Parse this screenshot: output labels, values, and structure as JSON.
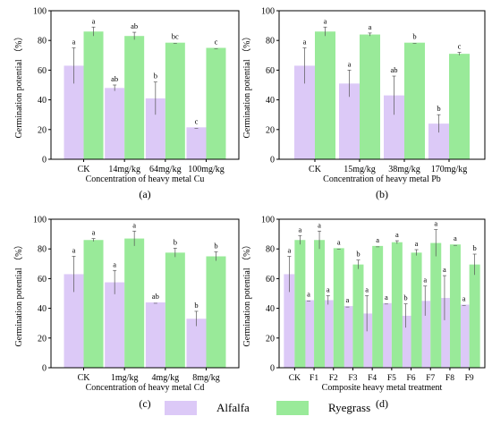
{
  "colors": {
    "alfalfa": "#dcc9f7",
    "ryegrass": "#99ea99",
    "error_bar": "#555555"
  },
  "legend": {
    "alfalfa": "Alfalfa",
    "ryegrass": "Ryegrass"
  },
  "chart_data": [
    {
      "type": "bar",
      "panel_label": "(a)",
      "xlabel": "Concentration of heavy metal Cu",
      "ylabel": "Germination potential （%）",
      "ylim": [
        0,
        100
      ],
      "yticks": [
        0,
        20,
        40,
        60,
        80,
        100
      ],
      "categories": [
        "CK",
        "14mg/kg",
        "64mg/kg",
        "100mg/kg"
      ],
      "series": [
        {
          "name": "Alfalfa",
          "values": [
            63,
            48,
            41,
            21.5
          ],
          "errors": [
            12,
            2,
            11,
            0
          ],
          "letters": [
            "a",
            "ab",
            "b",
            "c"
          ]
        },
        {
          "name": "Ryegrass",
          "values": [
            86,
            83,
            78.5,
            75
          ],
          "errors": [
            3,
            2.5,
            0,
            0
          ],
          "letters": [
            "a",
            "ab",
            "bc",
            "c"
          ]
        }
      ]
    },
    {
      "type": "bar",
      "panel_label": "(b)",
      "xlabel": "Concentration of heavy metal Pb",
      "ylabel": "Germination potential （%）",
      "ylim": [
        0,
        100
      ],
      "yticks": [
        0,
        20,
        40,
        60,
        80,
        100
      ],
      "categories": [
        "CK",
        "15mg/kg",
        "38mg/kg",
        "170mg/kg"
      ],
      "series": [
        {
          "name": "Alfalfa",
          "values": [
            63,
            51,
            43,
            24
          ],
          "errors": [
            12,
            9,
            13,
            6
          ],
          "letters": [
            "a",
            "a",
            "ab",
            "b"
          ]
        },
        {
          "name": "Ryegrass",
          "values": [
            86,
            84,
            78.5,
            71
          ],
          "errors": [
            3,
            1,
            0,
            1
          ],
          "letters": [
            "a",
            "a",
            "b",
            "c"
          ]
        }
      ]
    },
    {
      "type": "bar",
      "panel_label": "(c)",
      "xlabel": "Concentration of heavy metal Cd",
      "ylabel": "Germination potential （%）",
      "ylim": [
        0,
        100
      ],
      "yticks": [
        0,
        20,
        40,
        60,
        80,
        100
      ],
      "categories": [
        "CK",
        "1mg/kg",
        "4mg/kg",
        "8mg/kg"
      ],
      "series": [
        {
          "name": "Alfalfa",
          "values": [
            63,
            57.5,
            44,
            33
          ],
          "errors": [
            12,
            8,
            0,
            5
          ],
          "letters": [
            "a",
            "a",
            "ab",
            "b"
          ]
        },
        {
          "name": "Ryegrass",
          "values": [
            86,
            87,
            77.5,
            75
          ],
          "errors": [
            1,
            5,
            3,
            3
          ],
          "letters": [
            "a",
            "a",
            "b",
            "b"
          ]
        }
      ]
    },
    {
      "type": "bar",
      "panel_label": "(d)",
      "xlabel": "Composite heavy metal treatment",
      "ylabel": "Germination potential （%）",
      "ylim": [
        0,
        100
      ],
      "yticks": [
        0,
        20,
        40,
        60,
        80,
        100
      ],
      "categories": [
        "CK",
        "F1",
        "F2",
        "F3",
        "F4",
        "F5",
        "F6",
        "F7",
        "F8",
        "F9"
      ],
      "series": [
        {
          "name": "Alfalfa",
          "values": [
            63,
            45.5,
            45.5,
            41.5,
            36.5,
            43.5,
            35,
            45,
            47,
            42.5
          ],
          "errors": [
            12,
            0,
            3,
            0,
            12,
            0,
            8,
            10,
            15,
            0
          ],
          "letters": [
            "a",
            "a",
            "a",
            "a",
            "a",
            "a",
            "b",
            "a",
            "a",
            "a"
          ]
        },
        {
          "name": "Ryegrass",
          "values": [
            86,
            86,
            80.5,
            69.5,
            82,
            84.5,
            77.5,
            84,
            83,
            69.5
          ],
          "errors": [
            3,
            6,
            0,
            3,
            0,
            1,
            2,
            9,
            0,
            7
          ],
          "letters": [
            "a",
            "a",
            "a",
            "b",
            "a",
            "a",
            "a",
            "a",
            "a",
            "b"
          ]
        }
      ]
    }
  ]
}
